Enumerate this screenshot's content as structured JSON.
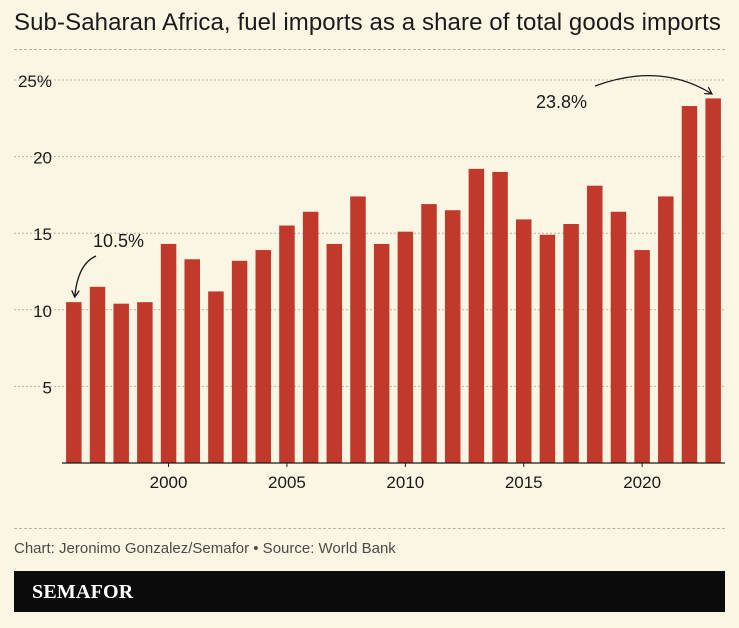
{
  "header": {
    "title": "Sub-Saharan Africa, fuel imports as a share of total goods imports"
  },
  "footer": {
    "credit": "Chart: Jeronimo Gonzalez/Semafor • Source: World Bank",
    "brand": "SEMAFOR"
  },
  "colors": {
    "bar": "#c0392b",
    "background": "#fbf6e4",
    "grid": "#b8b4a4",
    "text": "#1a1a1a",
    "brand_bar": "#0b0b0b"
  },
  "chart_data": {
    "type": "bar",
    "title": "Sub-Saharan Africa, fuel imports as a share of total goods imports",
    "xlabel": "",
    "ylabel": "",
    "ylim": [
      0,
      25
    ],
    "y_ticks": [
      {
        "value": 5,
        "label": "5"
      },
      {
        "value": 10,
        "label": "10"
      },
      {
        "value": 15,
        "label": "15"
      },
      {
        "value": 20,
        "label": "20"
      },
      {
        "value": 25,
        "label": "25%"
      }
    ],
    "x_tick_years": [
      2000,
      2005,
      2010,
      2015,
      2020
    ],
    "grid": true,
    "categories": [
      1996,
      1997,
      1998,
      1999,
      2000,
      2001,
      2002,
      2003,
      2004,
      2005,
      2006,
      2007,
      2008,
      2009,
      2010,
      2011,
      2012,
      2013,
      2014,
      2015,
      2016,
      2017,
      2018,
      2019,
      2020,
      2021,
      2022,
      2023
    ],
    "values": [
      10.5,
      11.5,
      10.4,
      10.5,
      14.3,
      13.3,
      11.2,
      13.2,
      13.9,
      15.5,
      16.4,
      14.3,
      17.4,
      14.3,
      15.1,
      16.9,
      16.5,
      19.2,
      19.0,
      15.9,
      14.9,
      15.6,
      18.1,
      16.4,
      13.9,
      17.4,
      23.3,
      23.8
    ],
    "annotations": [
      {
        "label": "10.5%",
        "category": 1996
      },
      {
        "label": "23.8%",
        "category": 2023
      }
    ]
  }
}
